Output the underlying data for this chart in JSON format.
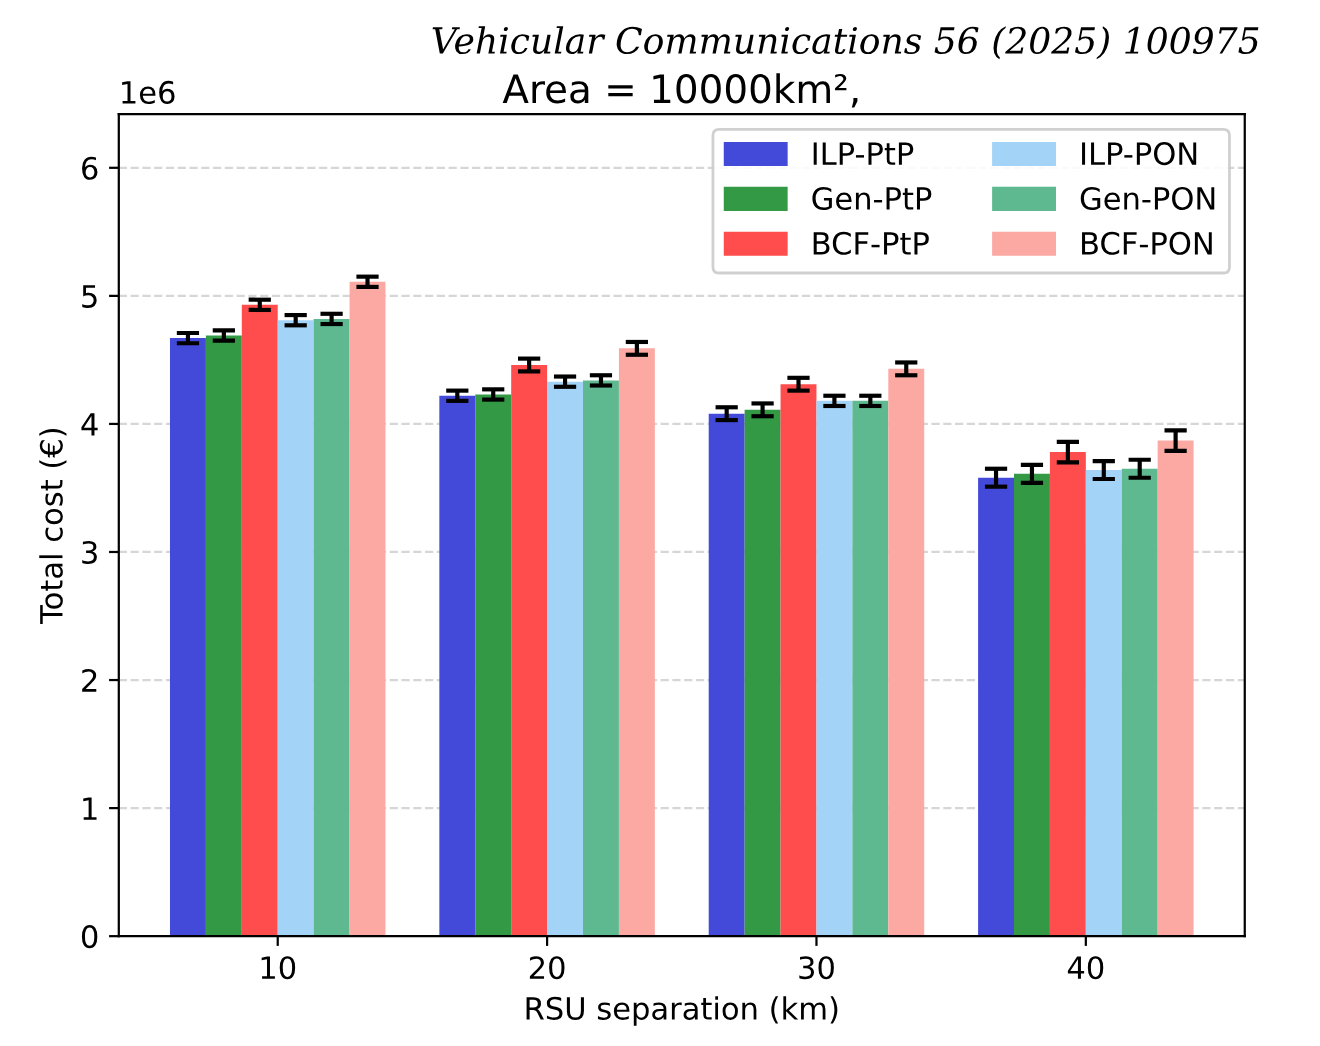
{
  "chart_data": {
    "type": "bar",
    "title": "Area = 10000km²,",
    "annotations": [
      "Vehicular Communications 56 (2025) 100975",
      "1e6"
    ],
    "xlabel": "RSU separation (km)",
    "ylabel": "Total cost (€)",
    "categories": [
      "10",
      "20",
      "30",
      "40"
    ],
    "series": [
      {
        "name": "ILP-PtP",
        "color": "#4349d8",
        "values": [
          4.67,
          4.22,
          4.08,
          3.58
        ],
        "errors": [
          0.04,
          0.04,
          0.05,
          0.07
        ]
      },
      {
        "name": "Gen-PtP",
        "color": "#339944",
        "values": [
          4.69,
          4.23,
          4.11,
          3.61
        ],
        "errors": [
          0.04,
          0.04,
          0.05,
          0.07
        ]
      },
      {
        "name": "BCF-PtP",
        "color": "#ff4d4d",
        "values": [
          4.93,
          4.46,
          4.31,
          3.78
        ],
        "errors": [
          0.04,
          0.05,
          0.05,
          0.08
        ]
      },
      {
        "name": "ILP-PON",
        "color": "#a3d3f7",
        "values": [
          4.81,
          4.33,
          4.18,
          3.64
        ],
        "errors": [
          0.04,
          0.04,
          0.04,
          0.07
        ]
      },
      {
        "name": "Gen-PON",
        "color": "#5eb991",
        "values": [
          4.82,
          4.34,
          4.18,
          3.65
        ],
        "errors": [
          0.04,
          0.04,
          0.04,
          0.07
        ]
      },
      {
        "name": "BCF-PON",
        "color": "#fca9a4",
        "values": [
          5.11,
          4.59,
          4.43,
          3.87
        ],
        "errors": [
          0.04,
          0.05,
          0.05,
          0.08
        ]
      }
    ],
    "ylim": [
      0,
      6.42
    ],
    "yticks": [
      0,
      1,
      2,
      3,
      4,
      5,
      6
    ],
    "grid": "y",
    "legend": "top right"
  }
}
